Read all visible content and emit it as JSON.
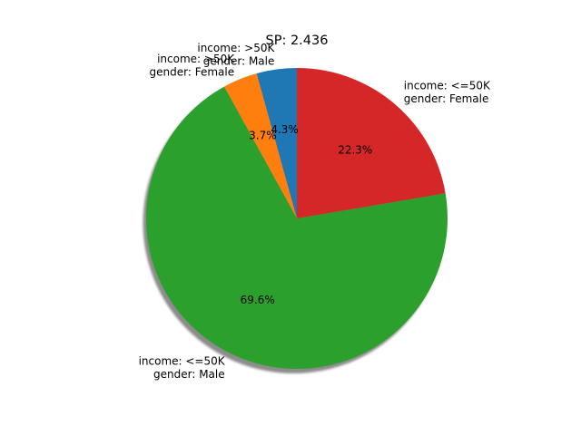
{
  "chart_data": {
    "type": "pie",
    "title": "SP: 2.436",
    "shadow": true,
    "start_angle_deg": 90,
    "direction": "counterclockwise",
    "slices": [
      {
        "label_lines": [
          "income: >50K",
          "gender: Male"
        ],
        "value": 4.3,
        "pct_label": "4.3%",
        "color": "#1f77b4"
      },
      {
        "label_lines": [
          "income: >50K",
          "gender: Female"
        ],
        "value": 3.7,
        "pct_label": "3.7%",
        "color": "#ff7f0e"
      },
      {
        "label_lines": [
          "income: <=50K",
          "gender: Male"
        ],
        "value": 69.6,
        "pct_label": "69.6%",
        "color": "#2ca02c"
      },
      {
        "label_lines": [
          "income: <=50K",
          "gender: Female"
        ],
        "value": 22.3,
        "pct_label": "22.3%",
        "color": "#d62728"
      }
    ]
  }
}
